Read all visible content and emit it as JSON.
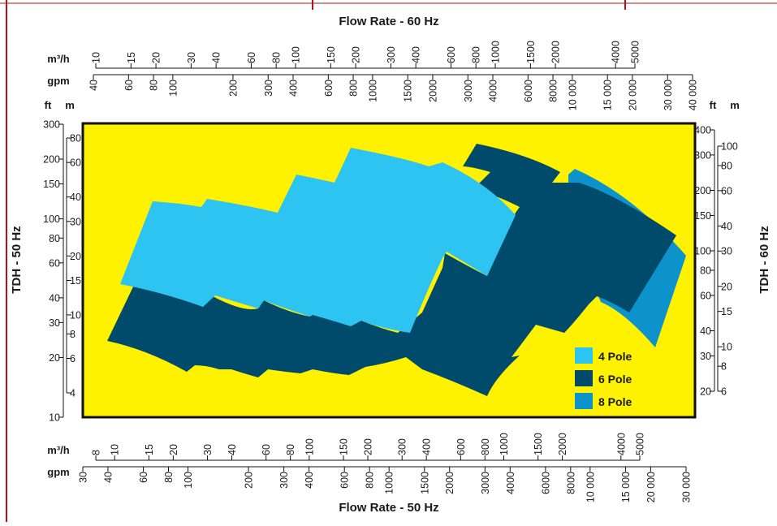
{
  "chart_data": {
    "type": "area",
    "titles": {
      "top": "Flow Rate - 60 Hz",
      "bottom": "Flow Rate - 50 Hz",
      "left": "TDH - 50 Hz",
      "right": "TDH - 60 Hz"
    },
    "units": {
      "m3h": "m³/h",
      "gpm": "gpm",
      "ft": "ft",
      "m": "m"
    },
    "axes": {
      "x_bottom_m3h_ticks": [
        "8",
        "10",
        "15",
        "20",
        "30",
        "40",
        "60",
        "80",
        "100",
        "150",
        "200",
        "300",
        "400",
        "600",
        "800",
        "1000",
        "1500",
        "2000",
        "4000",
        "5000"
      ],
      "x_bottom_gpm_ticks": [
        "30",
        "40",
        "60",
        "80",
        "100",
        "200",
        "300",
        "400",
        "600",
        "800",
        "1000",
        "1500",
        "2000",
        "3000",
        "4000",
        "6000",
        "8000",
        "10 000",
        "15 000",
        "20 000",
        "30 000"
      ],
      "x_top_m3h_ticks": [
        "10",
        "15",
        "20",
        "30",
        "40",
        "60",
        "80",
        "100",
        "150",
        "200",
        "300",
        "400",
        "600",
        "800",
        "1000",
        "1500",
        "2000",
        "4000",
        "5000"
      ],
      "x_top_gpm_ticks": [
        "40",
        "60",
        "80",
        "100",
        "200",
        "300",
        "400",
        "600",
        "800",
        "1000",
        "1500",
        "2000",
        "3000",
        "4000",
        "6000",
        "8000",
        "10 000",
        "15 000",
        "20 000",
        "30 000",
        "40 000"
      ],
      "y_left_ft_ticks": [
        "300",
        "200",
        "150",
        "100",
        "80",
        "60",
        "40",
        "30",
        "20",
        "10"
      ],
      "y_left_m_ticks": [
        "80",
        "60",
        "40",
        "30",
        "20",
        "15",
        "10",
        "8",
        "6",
        "4"
      ],
      "y_right_ft_ticks": [
        "400",
        "300",
        "200",
        "150",
        "100",
        "80",
        "60",
        "40",
        "30",
        "20"
      ],
      "y_right_m_ticks": [
        "100",
        "80",
        "60",
        "40",
        "30",
        "20",
        "15",
        "10",
        "8",
        "6"
      ],
      "y_scale": "log",
      "x_scale": "log",
      "plot_background": "#fff200"
    },
    "series": [
      {
        "name": "4 Pole",
        "color": "#2ec4f1"
      },
      {
        "name": "6 Pole",
        "color": "#004a6b"
      },
      {
        "name": "8 Pole",
        "color": "#0d93cb"
      }
    ],
    "legend_position": "bottom-right"
  }
}
